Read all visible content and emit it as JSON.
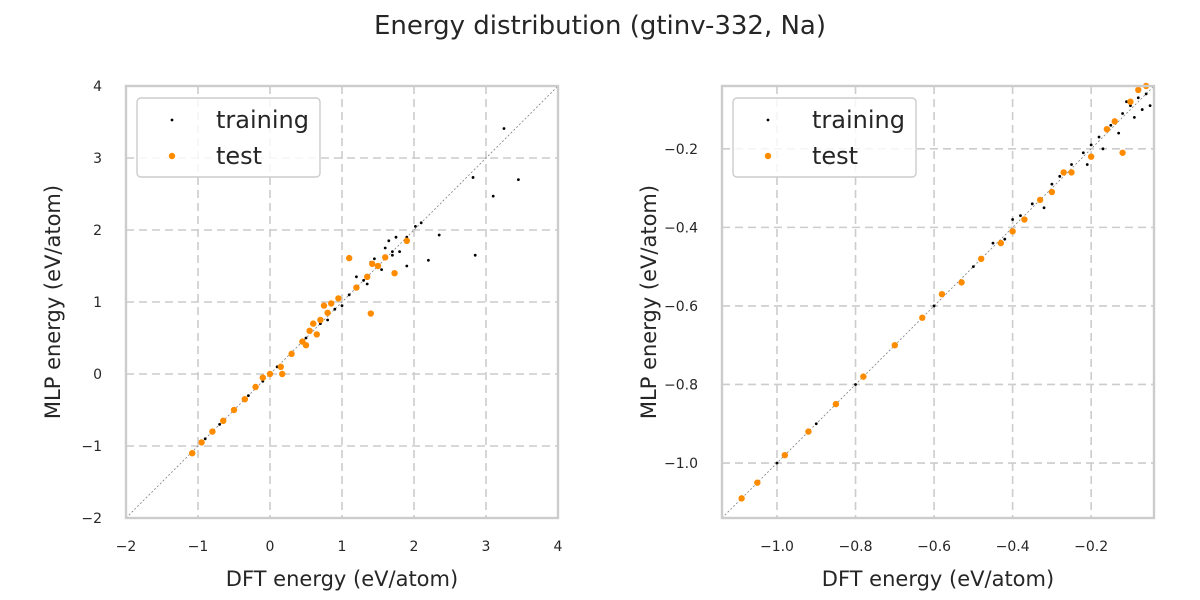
{
  "title": "Energy distribution (gtinv-332, Na)",
  "colors": {
    "training": "#000000",
    "test": "#ff8c00",
    "grid": "#cccccc",
    "frame": "#cccccc",
    "diagonal": "#808080"
  },
  "chart_data": [
    {
      "type": "scatter",
      "xlabel": "DFT energy (eV/atom)",
      "ylabel": "MLP energy (eV/atom)",
      "xlim": [
        -2,
        4
      ],
      "ylim": [
        -2,
        4
      ],
      "xticks": [
        "−2",
        "−1",
        "0",
        "1",
        "2",
        "3",
        "4"
      ],
      "yticks": [
        "−2",
        "−1",
        "0",
        "1",
        "2",
        "3",
        "4"
      ],
      "grid": true,
      "legend_position": "top-left",
      "diagonal": true,
      "series": [
        {
          "name": "training",
          "points": [
            [
              -1.08,
              -1.08
            ],
            [
              -0.9,
              -0.9
            ],
            [
              -0.7,
              -0.7
            ],
            [
              -0.5,
              -0.5
            ],
            [
              -0.3,
              -0.3
            ],
            [
              -0.1,
              -0.1
            ],
            [
              0.1,
              0.1
            ],
            [
              0.3,
              0.3
            ],
            [
              0.5,
              0.5
            ],
            [
              0.7,
              0.7
            ],
            [
              0.9,
              0.9
            ],
            [
              1.1,
              1.1
            ],
            [
              1.3,
              1.3
            ],
            [
              1.5,
              1.5
            ],
            [
              1.7,
              1.7
            ],
            [
              1.9,
              1.9
            ],
            [
              2.1,
              2.1
            ],
            [
              1.2,
              1.35
            ],
            [
              1.4,
              1.55
            ],
            [
              1.6,
              1.75
            ],
            [
              1.75,
              1.9
            ],
            [
              1.35,
              1.25
            ],
            [
              1.55,
              1.45
            ],
            [
              1.8,
              1.7
            ],
            [
              1.45,
              1.6
            ],
            [
              1.65,
              1.85
            ],
            [
              2.2,
              1.58
            ],
            [
              2.85,
              1.65
            ],
            [
              3.1,
              2.47
            ],
            [
              3.25,
              3.41
            ],
            [
              3.45,
              2.7
            ],
            [
              2.82,
              2.73
            ],
            [
              2.35,
              1.93
            ],
            [
              2.02,
              2.05
            ],
            [
              1.9,
              1.5
            ],
            [
              1.7,
              1.65
            ],
            [
              1.0,
              0.95
            ],
            [
              0.8,
              0.75
            ]
          ]
        },
        {
          "name": "test",
          "points": [
            [
              -1.08,
              -1.1
            ],
            [
              -0.95,
              -0.95
            ],
            [
              -0.8,
              -0.8
            ],
            [
              -0.65,
              -0.65
            ],
            [
              -0.5,
              -0.5
            ],
            [
              -0.35,
              -0.35
            ],
            [
              -0.2,
              -0.18
            ],
            [
              0.0,
              0.0
            ],
            [
              0.15,
              0.1
            ],
            [
              0.3,
              0.28
            ],
            [
              0.45,
              0.45
            ],
            [
              0.55,
              0.6
            ],
            [
              0.6,
              0.7
            ],
            [
              0.7,
              0.75
            ],
            [
              0.75,
              0.95
            ],
            [
              0.85,
              0.98
            ],
            [
              0.95,
              1.05
            ],
            [
              0.5,
              0.4
            ],
            [
              0.65,
              0.55
            ],
            [
              0.8,
              0.85
            ],
            [
              1.1,
              1.61
            ],
            [
              1.4,
              0.84
            ],
            [
              0.17,
              0.0
            ],
            [
              1.2,
              1.2
            ],
            [
              1.35,
              1.35
            ],
            [
              1.42,
              1.53
            ],
            [
              1.6,
              1.62
            ],
            [
              1.9,
              1.85
            ],
            [
              1.73,
              1.4
            ],
            [
              1.5,
              1.5
            ],
            [
              -0.1,
              -0.05
            ]
          ]
        }
      ]
    },
    {
      "type": "scatter",
      "xlabel": "DFT energy (eV/atom)",
      "ylabel": "MLP energy (eV/atom)",
      "xlim": [
        -1.14,
        -0.04
      ],
      "ylim": [
        -1.14,
        -0.04
      ],
      "xticks": [
        -1.0,
        -0.8,
        -0.6,
        -0.4,
        -0.2
      ],
      "yticks": [
        -1.0,
        -0.8,
        -0.6,
        -0.4,
        -0.2
      ],
      "xtick_labels": [
        "−1.0",
        "−0.8",
        "−0.6",
        "−0.4",
        "−0.2"
      ],
      "ytick_labels": [
        "−1.0",
        "−0.8",
        "−0.6",
        "−0.4",
        "−0.2"
      ],
      "grid": true,
      "legend_position": "top-left",
      "diagonal": true,
      "series": [
        {
          "name": "training",
          "points": [
            [
              -1.09,
              -1.09
            ],
            [
              -1.0,
              -1.0
            ],
            [
              -0.9,
              -0.9
            ],
            [
              -0.8,
              -0.8
            ],
            [
              -0.7,
              -0.7
            ],
            [
              -0.6,
              -0.6
            ],
            [
              -0.5,
              -0.5
            ],
            [
              -0.45,
              -0.44
            ],
            [
              -0.42,
              -0.43
            ],
            [
              -0.38,
              -0.37
            ],
            [
              -0.35,
              -0.34
            ],
            [
              -0.3,
              -0.29
            ],
            [
              -0.28,
              -0.27
            ],
            [
              -0.25,
              -0.24
            ],
            [
              -0.22,
              -0.21
            ],
            [
              -0.2,
              -0.19
            ],
            [
              -0.18,
              -0.17
            ],
            [
              -0.15,
              -0.14
            ],
            [
              -0.12,
              -0.11
            ],
            [
              -0.1,
              -0.09
            ],
            [
              -0.08,
              -0.07
            ],
            [
              -0.06,
              -0.06
            ],
            [
              -0.09,
              -0.12
            ],
            [
              -0.07,
              -0.1
            ],
            [
              -0.11,
              -0.08
            ],
            [
              -0.17,
              -0.2
            ],
            [
              -0.21,
              -0.24
            ],
            [
              -0.13,
              -0.16
            ],
            [
              -0.05,
              -0.09
            ],
            [
              -0.32,
              -0.35
            ],
            [
              -0.4,
              -0.38
            ]
          ]
        },
        {
          "name": "test",
          "points": [
            [
              -1.09,
              -1.09
            ],
            [
              -1.05,
              -1.05
            ],
            [
              -0.98,
              -0.98
            ],
            [
              -0.92,
              -0.92
            ],
            [
              -0.85,
              -0.85
            ],
            [
              -0.78,
              -0.78
            ],
            [
              -0.7,
              -0.7
            ],
            [
              -0.63,
              -0.63
            ],
            [
              -0.58,
              -0.57
            ],
            [
              -0.53,
              -0.54
            ],
            [
              -0.48,
              -0.48
            ],
            [
              -0.43,
              -0.44
            ],
            [
              -0.4,
              -0.41
            ],
            [
              -0.37,
              -0.38
            ],
            [
              -0.33,
              -0.33
            ],
            [
              -0.3,
              -0.31
            ],
            [
              -0.27,
              -0.26
            ],
            [
              -0.25,
              -0.26
            ],
            [
              -0.2,
              -0.22
            ],
            [
              -0.16,
              -0.15
            ],
            [
              -0.14,
              -0.13
            ],
            [
              -0.12,
              -0.21
            ],
            [
              -0.1,
              -0.08
            ],
            [
              -0.08,
              -0.05
            ],
            [
              -0.06,
              -0.04
            ]
          ]
        }
      ]
    }
  ]
}
